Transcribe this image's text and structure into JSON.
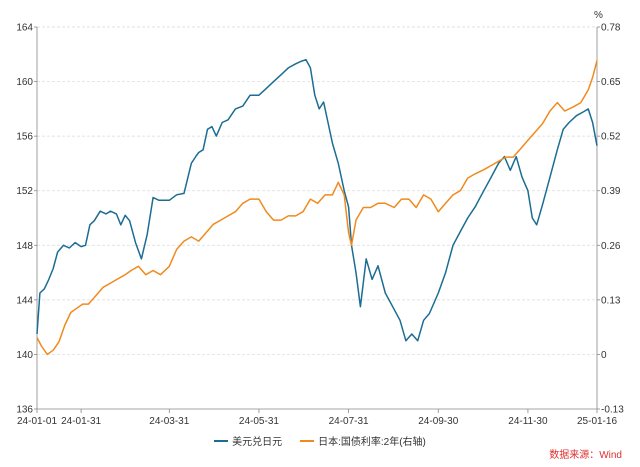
{
  "chart_data": {
    "type": "line",
    "unit_right": "%",
    "x_ticks": [
      "24-01-01",
      "24-01-31",
      "24-03-31",
      "24-05-31",
      "24-07-31",
      "24-09-30",
      "24-11-30",
      "25-01-16"
    ],
    "y_left": {
      "ylim": [
        136,
        164
      ],
      "ticks": [
        "136",
        "140",
        "144",
        "148",
        "152",
        "156",
        "160",
        "164"
      ]
    },
    "y_right": {
      "ylim": [
        -0.13,
        0.78
      ],
      "ticks": [
        "-0.13",
        "0",
        "0.13",
        "0.26",
        "0.39",
        "0.52",
        "0.65",
        "0.78"
      ]
    },
    "grid": true,
    "legend_position": "bottom",
    "series": [
      {
        "name": "美元兑日元",
        "axis": "left",
        "color": "#1b6d93",
        "x": [
          "2024-01-01",
          "2024-01-03",
          "2024-01-06",
          "2024-01-09",
          "2024-01-12",
          "2024-01-15",
          "2024-01-19",
          "2024-01-23",
          "2024-01-27",
          "2024-01-31",
          "2024-02-03",
          "2024-02-06",
          "2024-02-09",
          "2024-02-13",
          "2024-02-17",
          "2024-02-20",
          "2024-02-24",
          "2024-02-27",
          "2024-03-01",
          "2024-03-04",
          "2024-03-08",
          "2024-03-12",
          "2024-03-16",
          "2024-03-20",
          "2024-03-24",
          "2024-03-31",
          "2024-04-05",
          "2024-04-10",
          "2024-04-15",
          "2024-04-18",
          "2024-04-20",
          "2024-04-23",
          "2024-04-26",
          "2024-04-29",
          "2024-05-02",
          "2024-05-06",
          "2024-05-10",
          "2024-05-15",
          "2024-05-20",
          "2024-05-25",
          "2024-05-31",
          "2024-06-05",
          "2024-06-10",
          "2024-06-15",
          "2024-06-20",
          "2024-06-25",
          "2024-06-29",
          "2024-07-02",
          "2024-07-05",
          "2024-07-08",
          "2024-07-11",
          "2024-07-14",
          "2024-07-17",
          "2024-07-20",
          "2024-07-24",
          "2024-07-28",
          "2024-07-31",
          "2024-08-02",
          "2024-08-05",
          "2024-08-08",
          "2024-08-12",
          "2024-08-16",
          "2024-08-20",
          "2024-08-25",
          "2024-08-30",
          "2024-09-04",
          "2024-09-08",
          "2024-09-12",
          "2024-09-16",
          "2024-09-20",
          "2024-09-24",
          "2024-09-30",
          "2024-10-05",
          "2024-10-10",
          "2024-10-15",
          "2024-10-20",
          "2024-10-25",
          "2024-10-31",
          "2024-11-05",
          "2024-11-10",
          "2024-11-14",
          "2024-11-18",
          "2024-11-22",
          "2024-11-26",
          "2024-11-30",
          "2024-12-03",
          "2024-12-06",
          "2024-12-10",
          "2024-12-15",
          "2024-12-20",
          "2024-12-24",
          "2024-12-28",
          "2025-01-02",
          "2025-01-07",
          "2025-01-10",
          "2025-01-13",
          "2025-01-16"
        ],
        "values": [
          141.5,
          144.5,
          144.8,
          145.5,
          146.3,
          147.5,
          148.0,
          147.8,
          148.2,
          147.9,
          148.0,
          149.5,
          149.8,
          150.5,
          150.3,
          150.5,
          150.3,
          149.5,
          150.2,
          149.8,
          148.2,
          147.0,
          148.8,
          151.5,
          151.3,
          151.3,
          151.7,
          151.8,
          154.0,
          154.5,
          154.8,
          155.0,
          156.5,
          156.7,
          156.0,
          157.0,
          157.2,
          158.0,
          158.2,
          159.0,
          159.0,
          159.5,
          160.0,
          160.5,
          161.0,
          161.3,
          161.5,
          161.6,
          161.0,
          159.0,
          158.0,
          158.5,
          157.0,
          155.5,
          154.0,
          152.0,
          150.8,
          148.0,
          146.0,
          143.5,
          147.0,
          145.5,
          146.5,
          144.5,
          143.5,
          142.5,
          141.0,
          141.5,
          141.0,
          142.5,
          143.0,
          144.5,
          146.0,
          148.0,
          149.0,
          150.0,
          150.8,
          152.0,
          153.0,
          154.0,
          154.5,
          153.5,
          154.5,
          153.0,
          152.0,
          150.0,
          149.5,
          151.0,
          153.0,
          155.0,
          156.5,
          157.0,
          157.5,
          157.8,
          158.0,
          157.0,
          155.3
        ]
      },
      {
        "name": "日本:国债利率:2年(右轴)",
        "axis": "right",
        "color": "#f08a1e",
        "x": [
          "2024-01-01",
          "2024-01-04",
          "2024-01-08",
          "2024-01-12",
          "2024-01-16",
          "2024-01-20",
          "2024-01-24",
          "2024-01-28",
          "2024-02-01",
          "2024-02-05",
          "2024-02-10",
          "2024-02-15",
          "2024-02-20",
          "2024-02-25",
          "2024-03-01",
          "2024-03-05",
          "2024-03-10",
          "2024-03-15",
          "2024-03-20",
          "2024-03-25",
          "2024-03-31",
          "2024-04-05",
          "2024-04-10",
          "2024-04-15",
          "2024-04-20",
          "2024-04-25",
          "2024-04-30",
          "2024-05-05",
          "2024-05-10",
          "2024-05-15",
          "2024-05-20",
          "2024-05-25",
          "2024-05-31",
          "2024-06-05",
          "2024-06-10",
          "2024-06-15",
          "2024-06-20",
          "2024-06-25",
          "2024-06-30",
          "2024-07-05",
          "2024-07-10",
          "2024-07-15",
          "2024-07-20",
          "2024-07-24",
          "2024-07-28",
          "2024-07-31",
          "2024-08-02",
          "2024-08-05",
          "2024-08-10",
          "2024-08-15",
          "2024-08-20",
          "2024-08-25",
          "2024-08-31",
          "2024-09-05",
          "2024-09-10",
          "2024-09-15",
          "2024-09-20",
          "2024-09-25",
          "2024-09-30",
          "2024-10-05",
          "2024-10-10",
          "2024-10-15",
          "2024-10-20",
          "2024-10-25",
          "2024-10-31",
          "2024-11-05",
          "2024-11-10",
          "2024-11-15",
          "2024-11-20",
          "2024-11-25",
          "2024-11-30",
          "2024-12-05",
          "2024-12-10",
          "2024-12-15",
          "2024-12-20",
          "2024-12-25",
          "2024-12-31",
          "2025-01-05",
          "2025-01-10",
          "2025-01-13",
          "2025-01-16"
        ],
        "values": [
          0.04,
          0.02,
          0.0,
          0.01,
          0.03,
          0.07,
          0.1,
          0.11,
          0.12,
          0.12,
          0.14,
          0.16,
          0.17,
          0.18,
          0.19,
          0.2,
          0.21,
          0.19,
          0.2,
          0.19,
          0.21,
          0.25,
          0.27,
          0.28,
          0.27,
          0.29,
          0.31,
          0.32,
          0.33,
          0.34,
          0.36,
          0.37,
          0.37,
          0.34,
          0.32,
          0.32,
          0.33,
          0.33,
          0.34,
          0.37,
          0.36,
          0.38,
          0.38,
          0.41,
          0.38,
          0.29,
          0.26,
          0.32,
          0.35,
          0.35,
          0.36,
          0.36,
          0.35,
          0.37,
          0.37,
          0.35,
          0.38,
          0.37,
          0.34,
          0.36,
          0.38,
          0.39,
          0.42,
          0.43,
          0.44,
          0.45,
          0.46,
          0.47,
          0.47,
          0.49,
          0.51,
          0.53,
          0.55,
          0.58,
          0.6,
          0.58,
          0.59,
          0.6,
          0.63,
          0.66,
          0.7
        ]
      }
    ]
  },
  "legend": {
    "items": [
      {
        "label": "美元兑日元",
        "color": "#1b6d93"
      },
      {
        "label": "日本:国债利率:2年(右轴)",
        "color": "#f08a1e"
      }
    ]
  },
  "source": "数据来源：Wind"
}
